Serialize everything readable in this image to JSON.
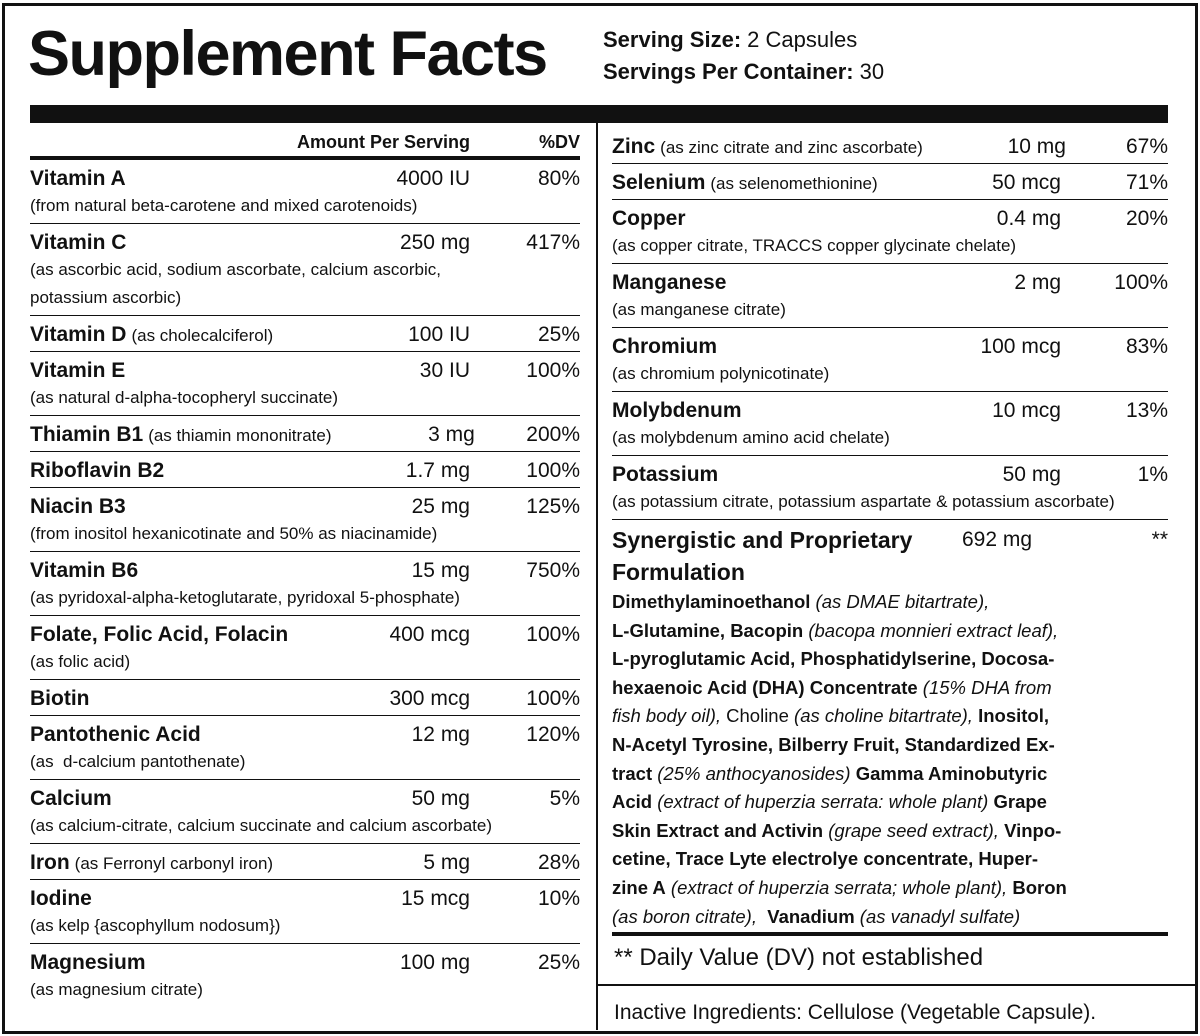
{
  "header": {
    "title": "Supplement Facts",
    "serving_size": {
      "label": "Serving Size:",
      "value": "2 Capsules"
    },
    "servings_per_container": {
      "label": "Servings Per Container:",
      "value": "30"
    }
  },
  "table": {
    "column_headers": {
      "amount": "Amount Per Serving",
      "dv": "%DV"
    },
    "left_rows": [
      {
        "name": "Vitamin A",
        "amount": "4000 IU",
        "dv": "80%",
        "note": [
          "(from natural beta-carotene and mixed carotenoids)"
        ]
      },
      {
        "name": "Vitamin C",
        "amount": "250 mg",
        "dv": "417%",
        "note": [
          "(as ascorbic acid, sodium ascorbate, calcium ascorbic,",
          "potassium ascorbic)"
        ]
      },
      {
        "name": "Vitamin D",
        "note_inline": "(as cholecalciferol)",
        "amount": "100 IU",
        "dv": "25%"
      },
      {
        "name": "Vitamin E",
        "amount": "30 IU",
        "dv": "100%",
        "note": [
          "(as natural d-alpha-tocopheryl succinate)"
        ]
      },
      {
        "name": "Thiamin B1",
        "note_inline": "(as thiamin mononitrate)",
        "amount": "3 mg",
        "dv": "200%"
      },
      {
        "name": "Riboflavin B2",
        "amount": "1.7 mg",
        "dv": "100%"
      },
      {
        "name": "Niacin B3",
        "amount": "25 mg",
        "dv": "125%",
        "note": [
          "(from inositol hexanicotinate and 50% as niacinamide)"
        ]
      },
      {
        "name": "Vitamin B6",
        "amount": "15 mg",
        "dv": "750%",
        "note": [
          "(as pyridoxal-alpha-ketoglutarate, pyridoxal 5-phosphate)"
        ]
      },
      {
        "name": "Folate, Folic Acid, Folacin",
        "amount": "400 mcg",
        "dv": "100%",
        "note": [
          "(as folic acid)"
        ]
      },
      {
        "name": "Biotin",
        "amount": "300 mcg",
        "dv": "100%"
      },
      {
        "name": "Pantothenic Acid",
        "amount": "12 mg",
        "dv": "120%",
        "note": [
          "(as  d-calcium pantothenate)"
        ]
      },
      {
        "name": "Calcium",
        "amount": "50 mg",
        "dv": "5%",
        "note": [
          "(as calcium-citrate, calcium succinate and calcium ascorbate)"
        ]
      },
      {
        "name": "Iron",
        "note_inline": "(as Ferronyl carbonyl iron)",
        "amount": "5 mg",
        "dv": "28%"
      },
      {
        "name": "Iodine",
        "amount": "15 mcg",
        "dv": "10%",
        "note": [
          "(as kelp {ascophyllum nodosum})"
        ]
      },
      {
        "name": "Magnesium",
        "amount": "100 mg",
        "dv": "25%",
        "note": [
          "(as magnesium citrate)"
        ]
      }
    ],
    "right_rows": [
      {
        "name": "Zinc",
        "note_inline": "(as zinc citrate and zinc ascorbate)",
        "amount": "10 mg",
        "dv": "67%"
      },
      {
        "name": "Selenium",
        "note_inline": "(as selenomethionine)",
        "amount": "50 mcg",
        "dv": "71%"
      },
      {
        "name": "Copper",
        "amount": "0.4 mg",
        "dv": "20%",
        "note": [
          "(as copper citrate, TRACCS copper glycinate chelate)"
        ]
      },
      {
        "name": "Manganese",
        "amount": "2 mg",
        "dv": "100%",
        "note": [
          "(as manganese citrate)"
        ]
      },
      {
        "name": "Chromium",
        "amount": "100 mcg",
        "dv": "83%",
        "note": [
          "(as chromium polynicotinate)"
        ]
      },
      {
        "name": "Molybdenum",
        "amount": "10 mcg",
        "dv": "13%",
        "note": [
          "(as molybdenum amino acid chelate)"
        ]
      },
      {
        "name": "Potassium",
        "amount": "50 mg",
        "dv": "1%",
        "note": [
          "(as potassium citrate, potassium aspartate & potassium ascorbate)"
        ]
      }
    ]
  },
  "proprietary_blend": {
    "name": "Synergistic and Proprietary Formulation",
    "amount": "692 mg",
    "dv": "**",
    "lines": [
      [
        {
          "text": "Dimethylaminoethanol",
          "style": "b"
        },
        {
          "text": " (as DMAE bitartrate),",
          "style": "i"
        }
      ],
      [
        {
          "text": "L-Glutamine, Bacopin",
          "style": "b"
        },
        {
          "text": " (bacopa monnieri extract leaf),",
          "style": "i"
        }
      ],
      [
        {
          "text": "L-pyroglutamic Acid, Phosphatidylserine, Docosa-",
          "style": "b"
        }
      ],
      [
        {
          "text": "hexaenoic Acid (DHA) Concentrate",
          "style": "b"
        },
        {
          "text": " (15% DHA from",
          "style": "i"
        }
      ],
      [
        {
          "text": "fish body oil),",
          "style": "i"
        },
        {
          "text": " Choline",
          "style": "n"
        },
        {
          "text": " (as choline bitartrate),",
          "style": "i"
        },
        {
          "text": " Inositol,",
          "style": "b"
        }
      ],
      [
        {
          "text": "N-Acetyl Tyrosine, Bilberry Fruit, Standardized Ex-",
          "style": "b"
        }
      ],
      [
        {
          "text": "tract",
          "style": "b"
        },
        {
          "text": " (25% anthocyanosides)",
          "style": "i"
        },
        {
          "text": " Gamma Aminobutyric",
          "style": "b"
        }
      ],
      [
        {
          "text": "Acid",
          "style": "b"
        },
        {
          "text": " (extract of huperzia serrata: whole plant)",
          "style": "i"
        },
        {
          "text": " Grape",
          "style": "b"
        }
      ],
      [
        {
          "text": "Skin Extract and Activin",
          "style": "b"
        },
        {
          "text": " (grape seed extract),",
          "style": "i"
        },
        {
          "text": " Vinpo-",
          "style": "b"
        }
      ],
      [
        {
          "text": "cetine, Trace Lyte electrolye concentrate, Huper-",
          "style": "b"
        }
      ],
      [
        {
          "text": "zine A",
          "style": "b"
        },
        {
          "text": " (extract of huperzia serrata; whole plant),",
          "style": "i"
        },
        {
          "text": " Boron",
          "style": "b"
        }
      ],
      [
        {
          "text": "(as boron citrate),",
          "style": "i"
        },
        {
          "text": "  Vanadium",
          "style": "b"
        },
        {
          "text": " (as vanadyl sulfate)",
          "style": "i"
        }
      ]
    ]
  },
  "footnote": "** Daily Value (DV) not established",
  "inactive_ingredients": "Inactive Ingredients: Cellulose (Vegetable Capsule)."
}
